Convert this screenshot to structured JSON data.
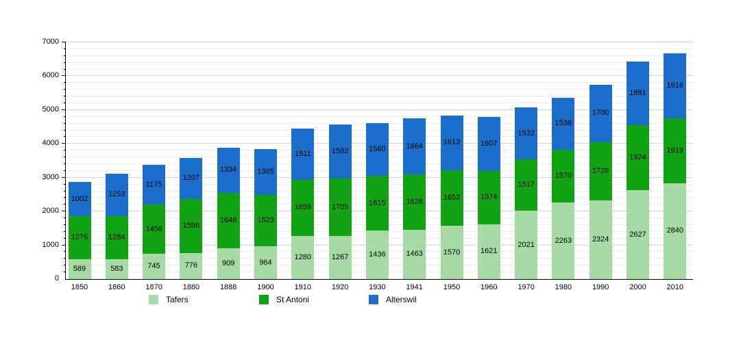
{
  "chart_data": {
    "type": "bar",
    "stacked": true,
    "title": "",
    "xlabel": "",
    "ylabel": "",
    "categories": [
      "1850",
      "1860",
      "1870",
      "1880",
      "1888",
      "1900",
      "1910",
      "1920",
      "1930",
      "1941",
      "1950",
      "1960",
      "1970",
      "1980",
      "1990",
      "2000",
      "2010"
    ],
    "series": [
      {
        "name": "Tafers",
        "color": "#a6dba6",
        "values": [
          589,
          583,
          745,
          776,
          909,
          964,
          1280,
          1267,
          1436,
          1463,
          1570,
          1621,
          2021,
          2263,
          2324,
          2627,
          2840
        ]
      },
      {
        "name": "St Antoni",
        "color": "#12a312",
        "values": [
          1276,
          1284,
          1456,
          1596,
          1646,
          1523,
          1659,
          1705,
          1615,
          1628,
          1652,
          1574,
          1517,
          1570,
          1726,
          1924,
          1919
        ]
      },
      {
        "name": "Alterswil",
        "color": "#1b6ecb",
        "values": [
          1002,
          1253,
          1175,
          1207,
          1334,
          1365,
          1511,
          1592,
          1560,
          1664,
          1613,
          1607,
          1532,
          1538,
          1700,
          1881,
          1916
        ]
      }
    ],
    "ylim": [
      0,
      7000
    ],
    "y_ticks": [
      0,
      1000,
      2000,
      3000,
      4000,
      5000,
      6000,
      7000
    ],
    "y_major_step": 1000,
    "y_minor_step": 200,
    "grid": true,
    "legend_position": "bottom",
    "value_labels": true,
    "axis_color": "#000000",
    "text_color": "#000000"
  }
}
